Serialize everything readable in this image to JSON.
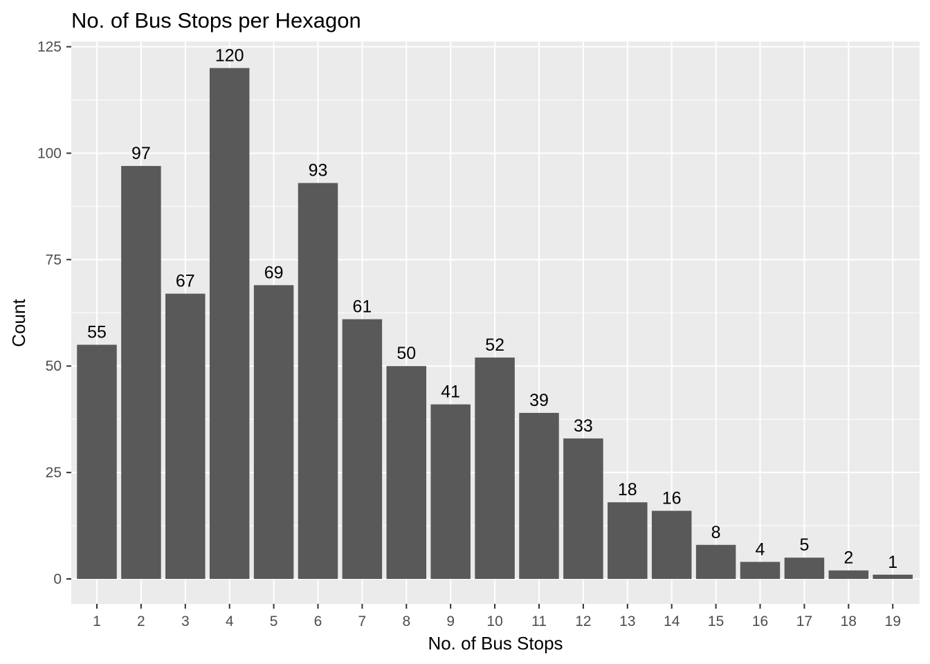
{
  "chart_data": {
    "type": "bar",
    "title": "No. of Bus Stops per Hexagon",
    "xlabel": "No. of Bus Stops",
    "ylabel": "Count",
    "categories": [
      "1",
      "2",
      "3",
      "4",
      "5",
      "6",
      "7",
      "8",
      "9",
      "10",
      "11",
      "12",
      "13",
      "14",
      "15",
      "16",
      "17",
      "18",
      "19"
    ],
    "values": [
      55,
      97,
      67,
      120,
      69,
      93,
      61,
      50,
      41,
      52,
      39,
      33,
      18,
      16,
      8,
      4,
      5,
      2,
      1
    ],
    "ylim": [
      0,
      125
    ],
    "yticks": [
      0,
      25,
      50,
      75,
      100,
      125
    ],
    "grid": true,
    "data_labels": true
  },
  "colors": {
    "bar": "#595959",
    "panel": "#ebebeb",
    "grid": "#ffffff"
  }
}
